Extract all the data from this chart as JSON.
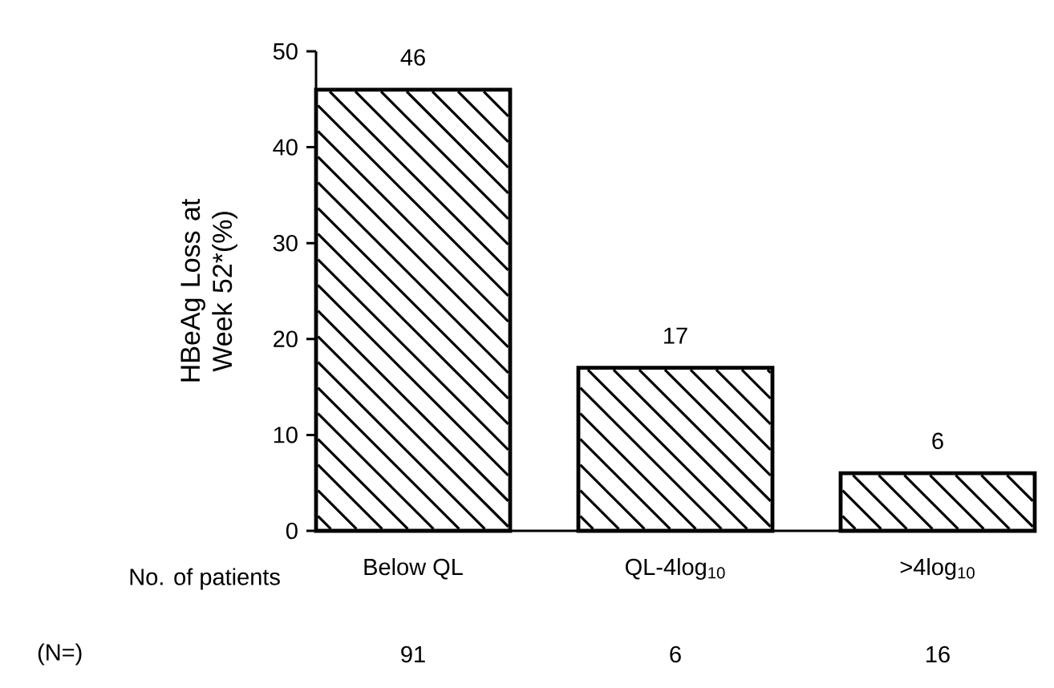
{
  "chart_data": {
    "type": "bar",
    "ylabel": "HBeAg Loss at Week 52*(%)",
    "categories": [
      "Below QL",
      "QL-4log$_{10}$",
      ">4log$_{10}$"
    ],
    "values": [
      46,
      17,
      6
    ],
    "color": "#000000",
    "data_labels": true,
    "ylim": [
      0,
      50
    ],
    "yticks": [
      0,
      10,
      20,
      30,
      40,
      50
    ],
    "grid": false,
    "annotations": [
      "No. of patients",
      "(N=)",
      "91",
      "6",
      "16"
    ]
  }
}
